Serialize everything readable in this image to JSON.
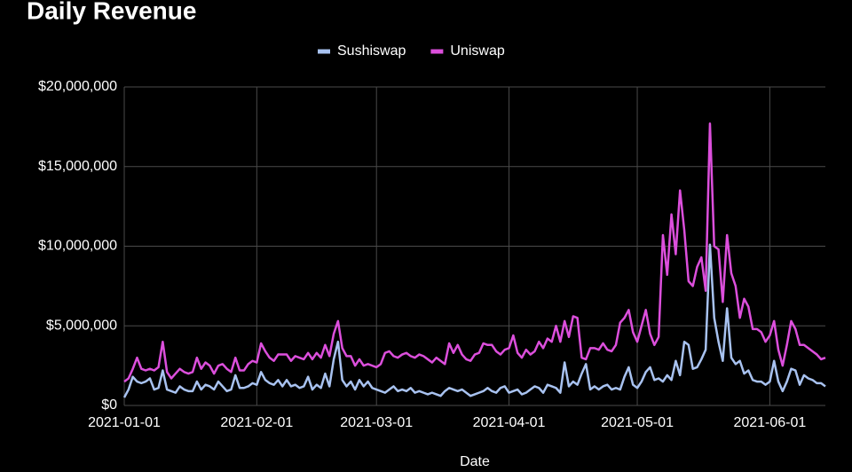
{
  "chart_data": {
    "type": "line",
    "title": "Daily Revenue",
    "x_label": "Date",
    "x": [
      "2021-01-01",
      "2021-01-02",
      "2021-01-03",
      "2021-01-04",
      "2021-01-05",
      "2021-01-06",
      "2021-01-07",
      "2021-01-08",
      "2021-01-09",
      "2021-01-10",
      "2021-01-11",
      "2021-01-12",
      "2021-01-13",
      "2021-01-14",
      "2021-01-15",
      "2021-01-16",
      "2021-01-17",
      "2021-01-18",
      "2021-01-19",
      "2021-01-20",
      "2021-01-21",
      "2021-01-22",
      "2021-01-23",
      "2021-01-24",
      "2021-01-25",
      "2021-01-26",
      "2021-01-27",
      "2021-01-28",
      "2021-01-29",
      "2021-01-30",
      "2021-01-31",
      "2021-02-01",
      "2021-02-02",
      "2021-02-03",
      "2021-02-04",
      "2021-02-05",
      "2021-02-06",
      "2021-02-07",
      "2021-02-08",
      "2021-02-09",
      "2021-02-10",
      "2021-02-11",
      "2021-02-12",
      "2021-02-13",
      "2021-02-14",
      "2021-02-15",
      "2021-02-16",
      "2021-02-17",
      "2021-02-18",
      "2021-02-19",
      "2021-02-20",
      "2021-02-21",
      "2021-02-22",
      "2021-02-23",
      "2021-02-24",
      "2021-02-25",
      "2021-02-26",
      "2021-02-27",
      "2021-02-28",
      "2021-03-01",
      "2021-03-02",
      "2021-03-03",
      "2021-03-04",
      "2021-03-05",
      "2021-03-06",
      "2021-03-07",
      "2021-03-08",
      "2021-03-09",
      "2021-03-10",
      "2021-03-11",
      "2021-03-12",
      "2021-03-13",
      "2021-03-14",
      "2021-03-15",
      "2021-03-16",
      "2021-03-17",
      "2021-03-18",
      "2021-03-19",
      "2021-03-20",
      "2021-03-21",
      "2021-03-22",
      "2021-03-23",
      "2021-03-24",
      "2021-03-25",
      "2021-03-26",
      "2021-03-27",
      "2021-03-28",
      "2021-03-29",
      "2021-03-30",
      "2021-03-31",
      "2021-04-01",
      "2021-04-02",
      "2021-04-03",
      "2021-04-04",
      "2021-04-05",
      "2021-04-06",
      "2021-04-07",
      "2021-04-08",
      "2021-04-09",
      "2021-04-10",
      "2021-04-11",
      "2021-04-12",
      "2021-04-13",
      "2021-04-14",
      "2021-04-15",
      "2021-04-16",
      "2021-04-17",
      "2021-04-18",
      "2021-04-19",
      "2021-04-20",
      "2021-04-21",
      "2021-04-22",
      "2021-04-23",
      "2021-04-24",
      "2021-04-25",
      "2021-04-26",
      "2021-04-27",
      "2021-04-28",
      "2021-04-29",
      "2021-04-30",
      "2021-05-01",
      "2021-05-02",
      "2021-05-03",
      "2021-05-04",
      "2021-05-05",
      "2021-05-06",
      "2021-05-07",
      "2021-05-08",
      "2021-05-09",
      "2021-05-10",
      "2021-05-11",
      "2021-05-12",
      "2021-05-13",
      "2021-05-14",
      "2021-05-15",
      "2021-05-16",
      "2021-05-17",
      "2021-05-18",
      "2021-05-19",
      "2021-05-20",
      "2021-05-21",
      "2021-05-22",
      "2021-05-23",
      "2021-05-24",
      "2021-05-25",
      "2021-05-26",
      "2021-05-27",
      "2021-05-28",
      "2021-05-29",
      "2021-05-30",
      "2021-05-31",
      "2021-06-01",
      "2021-06-02",
      "2021-06-03",
      "2021-06-04",
      "2021-06-05",
      "2021-06-06",
      "2021-06-07",
      "2021-06-08",
      "2021-06-09",
      "2021-06-10",
      "2021-06-11",
      "2021-06-12",
      "2021-06-13",
      "2021-06-14"
    ],
    "series": [
      {
        "name": "Sushiswap",
        "color": "#a8c2f0",
        "values": [
          500000,
          1000000,
          1800000,
          1500000,
          1400000,
          1500000,
          1700000,
          1000000,
          1100000,
          2200000,
          1000000,
          900000,
          800000,
          1200000,
          1000000,
          900000,
          900000,
          1500000,
          1000000,
          1300000,
          1200000,
          1000000,
          1500000,
          1200000,
          900000,
          1000000,
          1900000,
          1100000,
          1100000,
          1200000,
          1400000,
          1300000,
          2100000,
          1600000,
          1400000,
          1300000,
          1600000,
          1200000,
          1600000,
          1200000,
          1300000,
          1100000,
          1200000,
          1800000,
          1000000,
          1300000,
          1100000,
          2000000,
          1200000,
          2900000,
          4000000,
          1600000,
          1200000,
          1500000,
          1000000,
          1600000,
          1200000,
          1500000,
          1100000,
          1000000,
          900000,
          800000,
          1000000,
          1200000,
          900000,
          1000000,
          900000,
          1100000,
          800000,
          900000,
          800000,
          700000,
          800000,
          700000,
          600000,
          900000,
          1100000,
          1000000,
          900000,
          1000000,
          800000,
          600000,
          700000,
          800000,
          900000,
          1100000,
          900000,
          800000,
          1100000,
          1200000,
          800000,
          900000,
          1000000,
          700000,
          800000,
          1000000,
          1200000,
          1100000,
          800000,
          1300000,
          1200000,
          1100000,
          800000,
          2700000,
          1200000,
          1500000,
          1300000,
          2000000,
          2600000,
          1000000,
          1200000,
          1000000,
          1200000,
          1300000,
          1000000,
          1100000,
          1000000,
          1800000,
          2400000,
          1300000,
          1100000,
          1500000,
          2100000,
          2400000,
          1600000,
          1700000,
          1500000,
          1900000,
          1600000,
          2800000,
          1900000,
          4000000,
          3800000,
          2300000,
          2400000,
          2900000,
          3500000,
          10100000,
          5500000,
          4000000,
          2800000,
          6100000,
          3000000,
          2600000,
          2800000,
          2000000,
          2200000,
          1600000,
          1500000,
          1500000,
          1300000,
          1500000,
          2800000,
          1500000,
          900000,
          1500000,
          2300000,
          2200000,
          1300000,
          1900000,
          1700000,
          1600000,
          1400000,
          1400000,
          1200000
        ]
      },
      {
        "name": "Uniswap",
        "color": "#dc4fdc",
        "values": [
          1500000,
          1700000,
          2300000,
          3000000,
          2300000,
          2200000,
          2300000,
          2200000,
          2400000,
          4000000,
          2100000,
          1700000,
          2000000,
          2300000,
          2100000,
          2000000,
          2100000,
          3000000,
          2300000,
          2700000,
          2500000,
          2000000,
          2500000,
          2600000,
          2300000,
          2100000,
          3000000,
          2200000,
          2200000,
          2600000,
          2800000,
          2700000,
          3900000,
          3400000,
          3000000,
          2800000,
          3200000,
          3200000,
          3200000,
          2800000,
          3100000,
          3000000,
          2900000,
          3300000,
          2900000,
          3300000,
          3000000,
          3800000,
          3100000,
          4500000,
          5300000,
          3600000,
          3100000,
          3100000,
          2500000,
          2900000,
          2500000,
          2600000,
          2500000,
          2400000,
          2600000,
          3300000,
          3400000,
          3100000,
          3000000,
          3200000,
          3300000,
          3100000,
          3000000,
          3200000,
          3100000,
          2900000,
          2700000,
          3000000,
          2800000,
          2600000,
          3900000,
          3300000,
          3800000,
          3200000,
          2900000,
          2800000,
          3200000,
          3300000,
          3900000,
          3800000,
          3800000,
          3400000,
          3200000,
          3500000,
          3600000,
          4400000,
          3300000,
          3000000,
          3500000,
          3200000,
          3400000,
          4000000,
          3600000,
          4200000,
          4000000,
          5000000,
          4000000,
          5300000,
          4300000,
          5600000,
          5500000,
          3000000,
          2900000,
          3600000,
          3600000,
          3500000,
          3900000,
          3500000,
          3400000,
          3800000,
          5200000,
          5500000,
          6000000,
          4600000,
          4000000,
          5000000,
          6000000,
          4500000,
          3800000,
          4300000,
          10700000,
          8200000,
          12000000,
          9500000,
          13500000,
          11000000,
          7800000,
          7500000,
          8700000,
          9300000,
          7200000,
          17700000,
          10000000,
          9800000,
          6500000,
          10700000,
          8300000,
          7500000,
          5500000,
          6700000,
          6200000,
          4800000,
          4800000,
          4600000,
          4000000,
          4400000,
          5300000,
          3500000,
          2500000,
          3800000,
          5300000,
          4800000,
          3800000,
          3800000,
          3600000,
          3400000,
          3200000,
          2900000,
          3000000
        ]
      }
    ],
    "xlim": [
      "2021-01-01",
      "2021-06-14"
    ],
    "xticks": [
      "2021-01-01",
      "2021-02-01",
      "2021-03-01",
      "2021-04-01",
      "2021-05-01",
      "2021-06-01"
    ],
    "ylim": [
      0,
      20000000
    ],
    "yticks": [
      {
        "value": 0,
        "label": "$0"
      },
      {
        "value": 5000000,
        "label": "$5,000,000"
      },
      {
        "value": 10000000,
        "label": "$10,000,000"
      },
      {
        "value": 15000000,
        "label": "$15,000,000"
      },
      {
        "value": 20000000,
        "label": "$20,000,000"
      }
    ],
    "grid": true,
    "legend": "top"
  }
}
